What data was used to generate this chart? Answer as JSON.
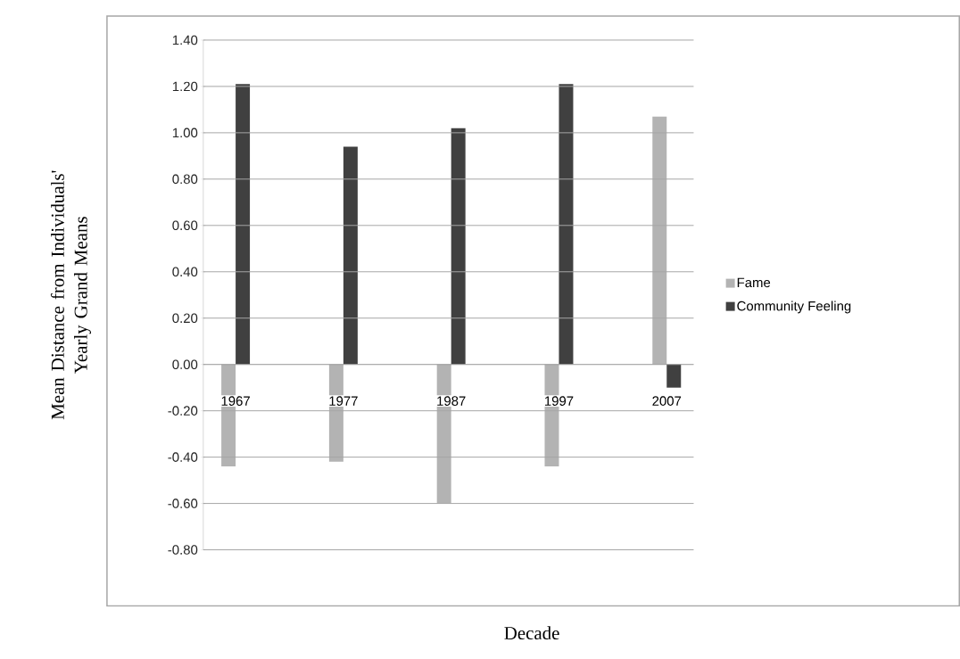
{
  "chart_data": {
    "type": "bar",
    "xlabel": "Decade",
    "ylabel": "Mean Distance from Individuals' Yearly Grand Means",
    "categories": [
      "1967",
      "1977",
      "1987",
      "1997",
      "2007"
    ],
    "series": [
      {
        "name": "Fame",
        "color": "#b3b3b3",
        "values": [
          -0.44,
          -0.42,
          -0.6,
          -0.44,
          1.07
        ]
      },
      {
        "name": "Community Feeling",
        "color": "#404040",
        "values": [
          1.21,
          0.94,
          1.02,
          1.21,
          -0.1
        ]
      }
    ],
    "ylim": [
      -0.8,
      1.4
    ],
    "yticks": [
      {
        "value": -0.8,
        "label": "-0.80"
      },
      {
        "value": -0.6,
        "label": "-0.60"
      },
      {
        "value": -0.4,
        "label": "-0.40"
      },
      {
        "value": -0.2,
        "label": "-0.20"
      },
      {
        "value": 0,
        "label": "0.00"
      },
      {
        "value": 0.2,
        "label": "0.20"
      },
      {
        "value": 0.4,
        "label": "0.40"
      },
      {
        "value": 0.6,
        "label": "0.60"
      },
      {
        "value": 0.8,
        "label": "0.80"
      },
      {
        "value": 1.0,
        "label": "1.00"
      },
      {
        "value": 1.2,
        "label": "1.20"
      },
      {
        "value": 1.4,
        "label": "1.40"
      }
    ],
    "grid": "y",
    "legend": "right"
  }
}
